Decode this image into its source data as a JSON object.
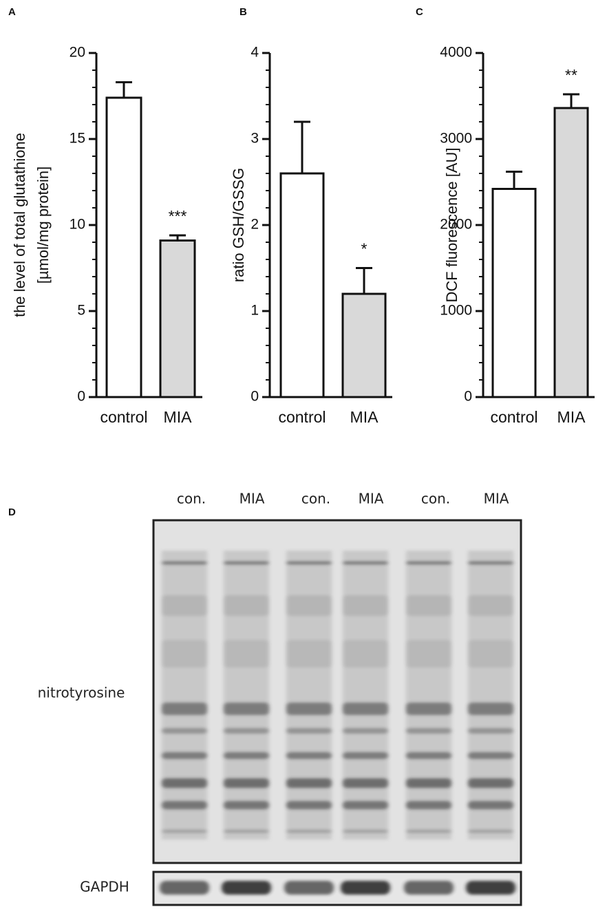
{
  "chart_data": [
    {
      "type": "bar",
      "panel_label": "A",
      "ylabel": [
        "the level of total glutathione",
        "[µmol/mg protein]"
      ],
      "categories": [
        "control",
        "MIA"
      ],
      "values": [
        17.4,
        9.1
      ],
      "errors": [
        0.9,
        0.3
      ],
      "colors": [
        "#ffffff",
        "#d9d9d9"
      ],
      "significance": [
        null,
        "***"
      ],
      "ylim": [
        0,
        20
      ],
      "yticks": [
        0,
        5,
        10,
        15,
        20
      ],
      "yminor_step": 1
    },
    {
      "type": "bar",
      "panel_label": "B",
      "ylabel": [
        "ratio GSH/GSSG"
      ],
      "categories": [
        "control",
        "MIA"
      ],
      "values": [
        2.6,
        1.2
      ],
      "errors": [
        0.6,
        0.3
      ],
      "colors": [
        "#ffffff",
        "#d9d9d9"
      ],
      "significance": [
        null,
        "*"
      ],
      "ylim": [
        0,
        4
      ],
      "yticks": [
        0,
        1,
        2,
        3,
        4
      ],
      "yminor_step": 0.2
    },
    {
      "type": "bar",
      "panel_label": "C",
      "ylabel": [
        "DCF fluorescence [AU]"
      ],
      "categories": [
        "control",
        "MIA"
      ],
      "values": [
        2420,
        3360
      ],
      "errors": [
        200,
        160
      ],
      "colors": [
        "#ffffff",
        "#d9d9d9"
      ],
      "significance": [
        null,
        "**"
      ],
      "ylim": [
        0,
        4000
      ],
      "yticks": [
        0,
        1000,
        2000,
        3000,
        4000
      ],
      "yminor_step": 200
    }
  ],
  "blot": {
    "panel_label": "D",
    "lanes": [
      "con.",
      "MIA",
      "con.",
      "MIA",
      "con.",
      "MIA"
    ],
    "rows": [
      "nitrotyrosine",
      "GAPDH"
    ]
  }
}
